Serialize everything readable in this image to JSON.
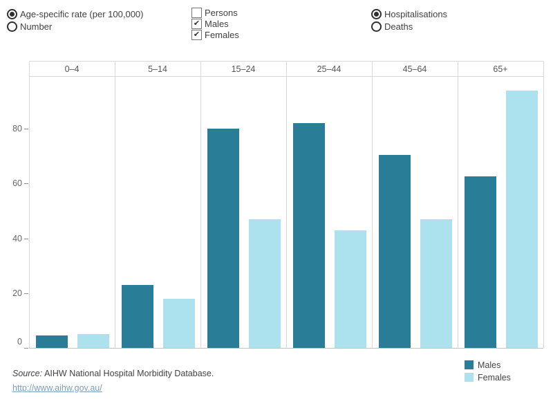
{
  "controls": {
    "measure_options": [
      {
        "label": "Age-specific rate (per 100,000)",
        "selected": true
      },
      {
        "label": "Number",
        "selected": false
      }
    ],
    "sex_filters": [
      {
        "label": "Persons",
        "checked": false
      },
      {
        "label": "Males",
        "checked": true
      },
      {
        "label": "Females",
        "checked": true
      }
    ],
    "metric_options": [
      {
        "label": "Hospitalisations",
        "selected": true
      },
      {
        "label": "Deaths",
        "selected": false
      }
    ]
  },
  "chart_data": {
    "type": "bar",
    "title": "",
    "categories": [
      "0–4",
      "5–14",
      "15–24",
      "25–44",
      "45–64",
      "65+"
    ],
    "series": [
      {
        "name": "Males",
        "color": "#2a7d96",
        "values": [
          4.5,
          23,
          80,
          82,
          70.5,
          62.5
        ]
      },
      {
        "name": "Females",
        "color": "#ace2ee",
        "values": [
          5,
          18,
          47,
          43,
          47,
          94
        ]
      }
    ],
    "xlabel": "",
    "ylabel": "",
    "yticks": [
      0,
      20,
      40,
      60,
      80
    ],
    "ylim": [
      0,
      99
    ],
    "grid": "off",
    "legend_position": "bottom-right"
  },
  "legend": {
    "items": [
      {
        "label": "Males",
        "color": "#2a7d96"
      },
      {
        "label": "Females",
        "color": "#ace2ee"
      }
    ]
  },
  "footer": {
    "source_prefix": "Source:",
    "source_text": "AIHW National Hospital Morbidity Database.",
    "link_text": "http://www.aihw.gov.au/"
  }
}
